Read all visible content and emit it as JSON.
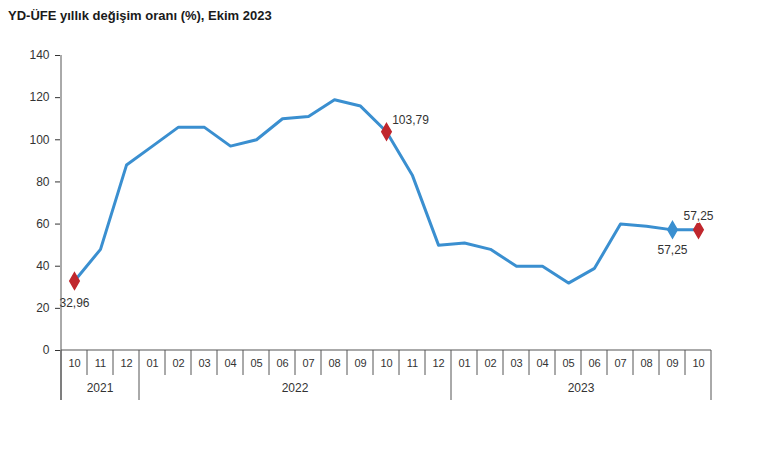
{
  "chart_data": {
    "type": "line",
    "title": "YD-ÜFE yıllık değişim oranı (%), Ekim 2023",
    "categories": [
      "10",
      "11",
      "12",
      "01",
      "02",
      "03",
      "04",
      "05",
      "06",
      "07",
      "08",
      "09",
      "10",
      "11",
      "12",
      "01",
      "02",
      "03",
      "04",
      "05",
      "06",
      "07",
      "08",
      "09",
      "10"
    ],
    "years": [
      "2021",
      "2021",
      "2021",
      "2022",
      "2022",
      "2022",
      "2022",
      "2022",
      "2022",
      "2022",
      "2022",
      "2022",
      "2022",
      "2022",
      "2022",
      "2023",
      "2023",
      "2023",
      "2023",
      "2023",
      "2023",
      "2023",
      "2023",
      "2023",
      "2023"
    ],
    "values": [
      32.96,
      48,
      88,
      97,
      106,
      105.9,
      97,
      100,
      110,
      111,
      119,
      116,
      103.79,
      83,
      50,
      51,
      48,
      40,
      40,
      32,
      39,
      60,
      59,
      57.25,
      57.25
    ],
    "value_labels": [
      "32,96",
      null,
      null,
      null,
      null,
      null,
      null,
      null,
      null,
      null,
      null,
      null,
      "103,79",
      null,
      null,
      null,
      null,
      null,
      null,
      null,
      null,
      null,
      null,
      "57,25",
      "57,25"
    ],
    "marker_colors": [
      "#c0272d",
      null,
      null,
      null,
      null,
      null,
      null,
      null,
      null,
      null,
      null,
      null,
      "#c0272d",
      null,
      null,
      null,
      null,
      null,
      null,
      null,
      null,
      null,
      null,
      "#3a8fd0",
      "#c0272d"
    ],
    "color": "#3a8fd0",
    "marker": "diamond",
    "ylim": [
      0,
      140
    ],
    "yticks": [
      0,
      20,
      40,
      60,
      80,
      100,
      120,
      140
    ],
    "grid": false
  }
}
